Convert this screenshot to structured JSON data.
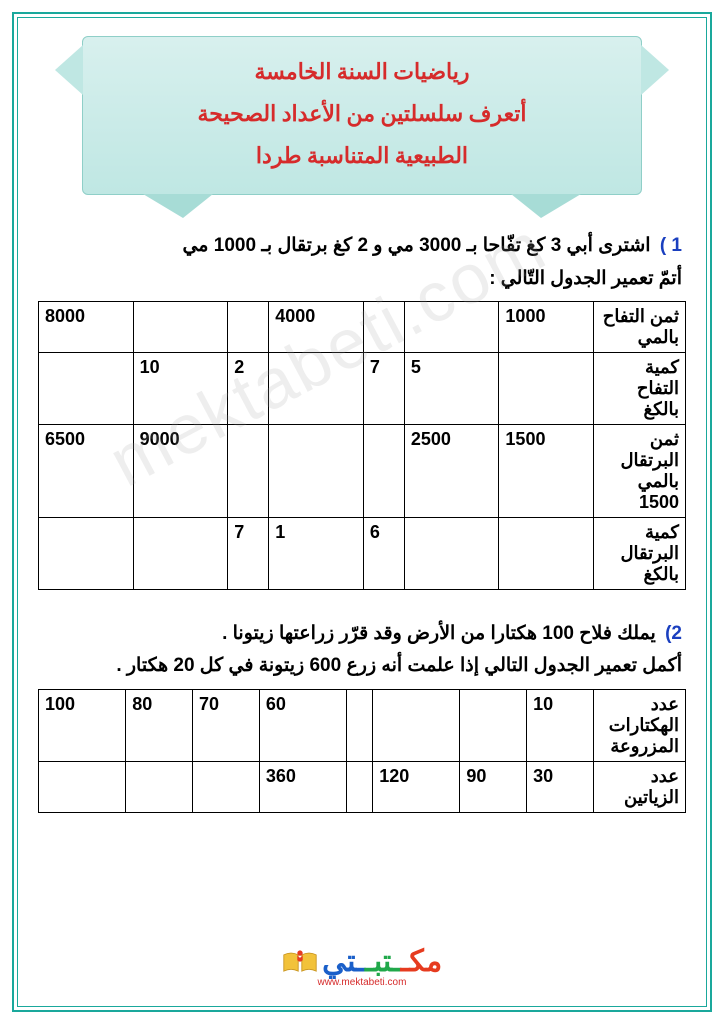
{
  "banner": {
    "line1": "رياضيات السنة الخامسة",
    "line2": "أتعرف سلسلتين من الأعداد الصحيحة",
    "line3": "الطبيعية المتناسبة طردا",
    "text_color": "#d62b2b",
    "bg_gradient_top": "#d8f0ee",
    "bg_gradient_bottom": "#bfe7e3"
  },
  "q1": {
    "num": "1 )",
    "line1": "اشترى أبي   3  كغ تفّاحا  بـ   3000  مي و  2  كغ برتقال بـ  1000 مي",
    "line2": "أتمّ تعمير الجدول التّالي :",
    "table": {
      "rows": [
        {
          "header": "ثمن التفاح بالمي",
          "cells": [
            "1000",
            "",
            "",
            "4000",
            "",
            "",
            "8000"
          ]
        },
        {
          "header": "كمية التفاح بالكغ",
          "cells": [
            "",
            "5",
            "7",
            "",
            "2",
            "10",
            ""
          ]
        },
        {
          "header": "ثمن البرتقال بالمي   1500",
          "cells": [
            "1500",
            "2500",
            "",
            "",
            "",
            "9000",
            "6500"
          ]
        },
        {
          "header": "كمية البرتقال بالكغ",
          "cells": [
            "",
            "",
            "6",
            "1",
            "7",
            "",
            ""
          ]
        }
      ]
    }
  },
  "q2": {
    "num": "2)",
    "line1": "يملك فلاح   100  هكتارا  من الأرض  وقد قرّر زراعتها زيتونا .",
    "line2": "أكمل تعمير الجدول التالي إذا علمت أنه زرع   600   زيتونة في كل   20   هكتار .",
    "table": {
      "rows": [
        {
          "header": "عدد الهكتارات المزروعة",
          "cells": [
            "10",
            "",
            "",
            "",
            "60",
            "70",
            "80",
            "100"
          ]
        },
        {
          "header": "عدد الزياتين",
          "cells": [
            "30",
            "90",
            "120",
            "",
            "360",
            "",
            "",
            ""
          ]
        }
      ]
    }
  },
  "logo": {
    "text": "مكتبتي",
    "sub": "www.mektabeti.com"
  },
  "watermark": "mektabeti.com",
  "colors": {
    "border": "#1aa89c",
    "qnum": "#1a3fbf",
    "body_text": "#000000"
  }
}
